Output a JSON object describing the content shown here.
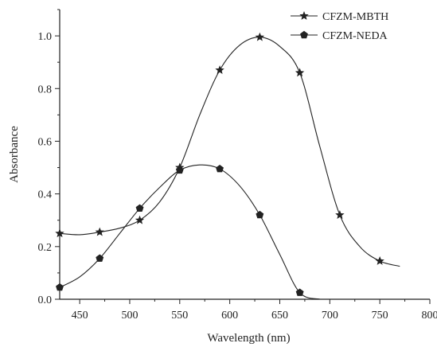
{
  "chart_data": {
    "type": "line",
    "xlabel": "Wavelength (nm)",
    "ylabel": "Absorbance",
    "xlim": [
      430,
      800
    ],
    "ylim": [
      0.0,
      1.1
    ],
    "x_ticks": [
      450,
      500,
      550,
      600,
      650,
      700,
      750,
      800
    ],
    "y_ticks": [
      0.0,
      0.2,
      0.4,
      0.6,
      0.8,
      1.0
    ],
    "x_tick_labels": [
      "450",
      "500",
      "550",
      "600",
      "650",
      "700",
      "750",
      "800"
    ],
    "y_tick_labels": [
      "0.0",
      "0.2",
      "0.4",
      "0.6",
      "0.8",
      "1.0"
    ],
    "grid": false,
    "legend_position": "top-right",
    "series": [
      {
        "name": "CFZM-MBTH",
        "marker": "star",
        "color": "#222222",
        "points": [
          [
            430,
            0.25
          ],
          [
            470,
            0.255
          ],
          [
            510,
            0.3
          ],
          [
            550,
            0.5
          ],
          [
            590,
            0.87
          ],
          [
            630,
            0.995
          ],
          [
            670,
            0.86
          ],
          [
            710,
            0.32
          ],
          [
            750,
            0.145
          ]
        ],
        "curve": [
          [
            430,
            0.25
          ],
          [
            450,
            0.245
          ],
          [
            470,
            0.255
          ],
          [
            490,
            0.27
          ],
          [
            510,
            0.3
          ],
          [
            530,
            0.37
          ],
          [
            550,
            0.5
          ],
          [
            570,
            0.7
          ],
          [
            590,
            0.87
          ],
          [
            610,
            0.965
          ],
          [
            630,
            0.995
          ],
          [
            650,
            0.96
          ],
          [
            670,
            0.86
          ],
          [
            690,
            0.58
          ],
          [
            710,
            0.32
          ],
          [
            730,
            0.2
          ],
          [
            750,
            0.145
          ],
          [
            770,
            0.125
          ]
        ]
      },
      {
        "name": "CFZM-NEDA",
        "marker": "pentagon",
        "color": "#222222",
        "points": [
          [
            430,
            0.045
          ],
          [
            470,
            0.155
          ],
          [
            510,
            0.345
          ],
          [
            550,
            0.49
          ],
          [
            590,
            0.495
          ],
          [
            630,
            0.32
          ],
          [
            670,
            0.025
          ]
        ],
        "curve": [
          [
            430,
            0.045
          ],
          [
            450,
            0.085
          ],
          [
            470,
            0.155
          ],
          [
            490,
            0.25
          ],
          [
            510,
            0.345
          ],
          [
            530,
            0.425
          ],
          [
            550,
            0.49
          ],
          [
            570,
            0.51
          ],
          [
            590,
            0.495
          ],
          [
            610,
            0.43
          ],
          [
            630,
            0.32
          ],
          [
            650,
            0.17
          ],
          [
            670,
            0.025
          ],
          [
            690,
            0.0
          ]
        ]
      }
    ]
  }
}
